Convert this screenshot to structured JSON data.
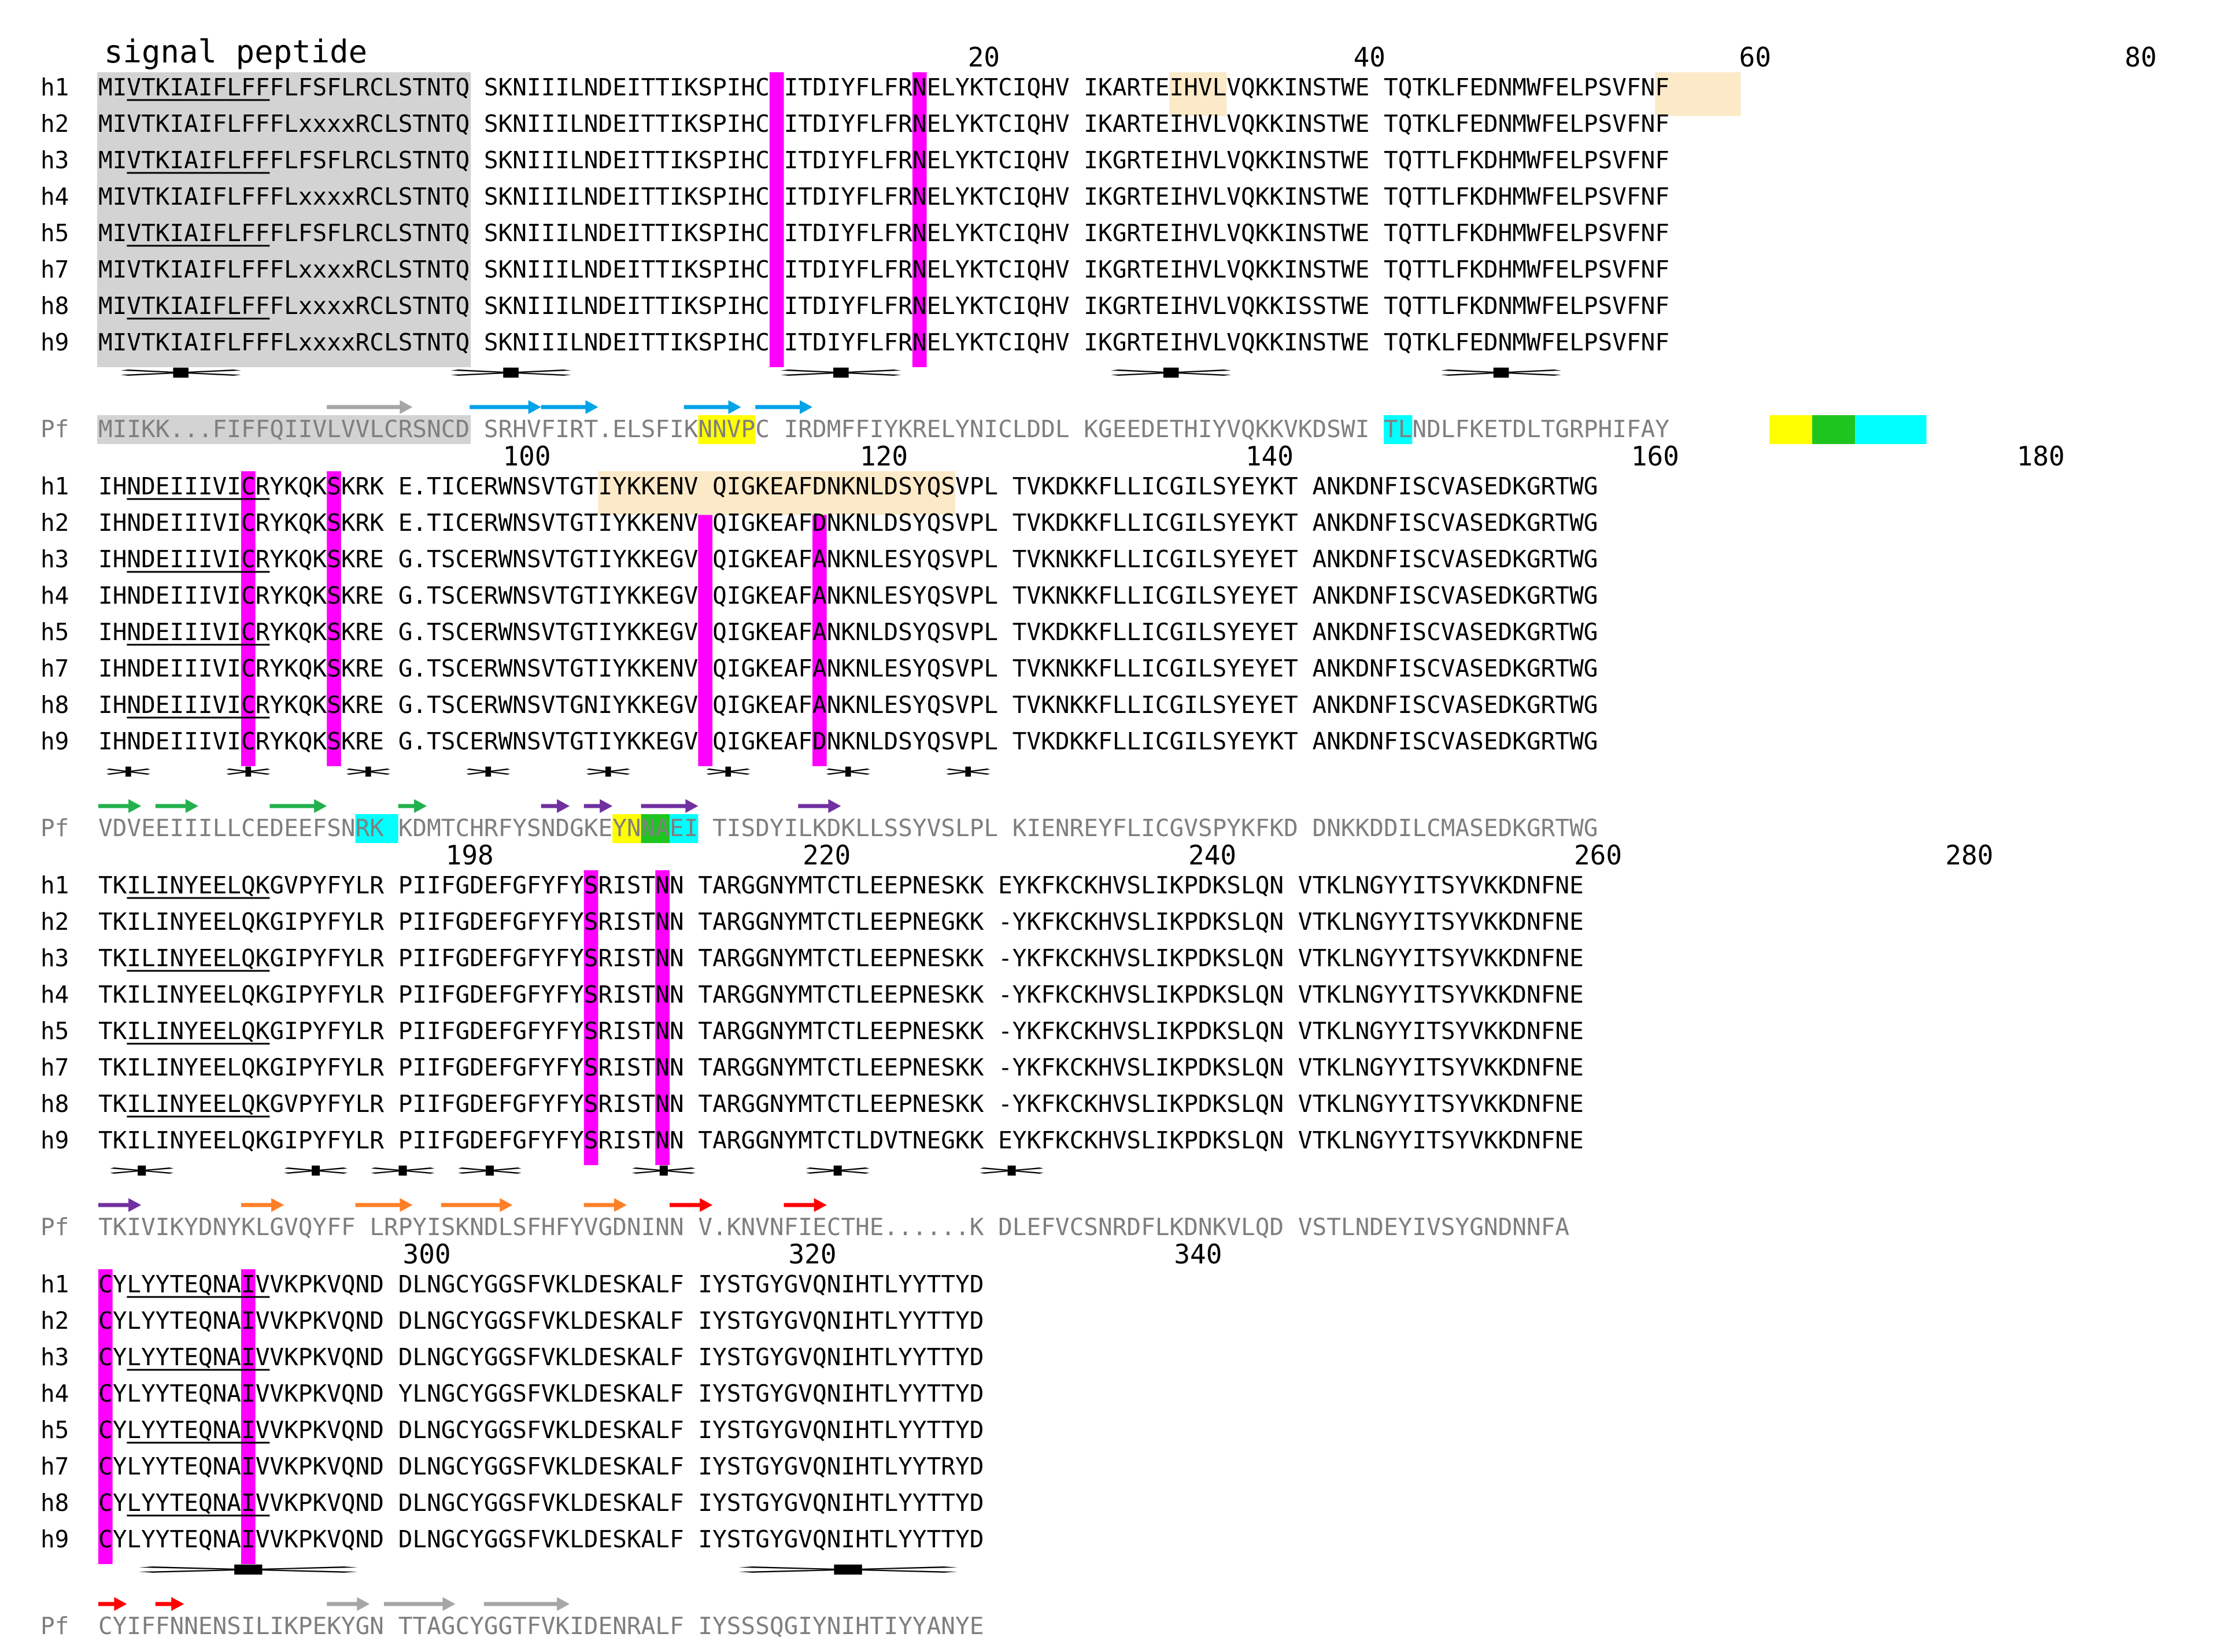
{
  "figure": {
    "title": "signal peptide",
    "colors": {
      "cysteine": "#ff00ff",
      "signal_bg": "#d3d3d3",
      "cream": "#fbe9c8",
      "yellow": "#ffff00",
      "cyan": "#00ffff",
      "green_hl": "#1fc51f",
      "red": "#ff0000",
      "orange": "#ff7f27",
      "green": "#22b14c",
      "blue": "#00a2e8",
      "purple": "#7030a0",
      "gray": "#a6a6a6",
      "pf_text": "#7f7f7f"
    },
    "blocks": [
      {
        "numbers": [
          {
            "col": 62,
            "text": "20"
          },
          {
            "col": 89,
            "text": "40"
          },
          {
            "col": 116,
            "text": "60"
          },
          {
            "col": 143,
            "text": "80"
          }
        ],
        "rows": [
          {
            "label": "h1",
            "text": "MIVTKIAIFLFFFLFSFLRCLSTNTQ SKNIIILNDEITTIKSPIHC ITDIYFLFRNELYKTCIQHV IKARTEIHVLVQKKINSTWE TQTKLFEDNMWFELPSVFNF"
          },
          {
            "label": "h2",
            "text": "MIVTKIAIFLFFFLxxxxRCLSTNTQ SKNIIILNDEITTIKSPIHC ITDIYFLFRNELYKTCIQHV IKARTEIHVLVQKKINSTWE TQTKLFEDNMWFELPSVFNF"
          },
          {
            "label": "h3",
            "text": "MIVTKIAIFLFFFLFSFLRCLSTNTQ SKNIIILNDEITTIKSPIHC ITDIYFLFRNELYKTCIQHV IKGRTEIHVLVQKKINSTWE TQTTLFKDHMWFELPSVFNF"
          },
          {
            "label": "h4",
            "text": "MIVTKIAIFLFFFLxxxxRCLSTNTQ SKNIIILNDEITTIKSPIHC ITDIYFLFRNELYKTCIQHV IKGRTEIHVLVQKKINSTWE TQTTLFKDHMWFELPSVFNF"
          },
          {
            "label": "h5",
            "text": "MIVTKIAIFLFFFLFSFLRCLSTNTQ SKNIIILNDEITTIKSPIHC ITDIYFLFRNELYKTCIQHV IKGRTEIHVLVQKKINSTWE TQTTLFKDHMWFELPSVFNF"
          },
          {
            "label": "h7",
            "text": "MIVTKIAIFLFFFLxxxxRCLSTNTQ SKNIIILNDEITTIKSPIHC ITDIYFLFRNELYKTCIQHV IKGRTEIHVLVQKKINSTWE TQTTLFKDHMWFELPSVFNF"
          },
          {
            "label": "h8",
            "text": "MIVTKIAIFLFFFLxxxxRCLSTNTQ SKNIIILNDEITTIKSPIHC ITDIYFLFRNELYKTCIQHV IKGRTEIHVLVQKKISSTWE TQTTLFKDNMWFELPSVFNF"
          },
          {
            "label": "h9",
            "text": "MIVTKIAIFLFFFLxxxxRCLSTNTQ SKNIIILNDEITTIKSPIHC ITDIYFLFRNELYKTCIQHV IKGRTEIHVLVQKKINSTWE TQTKLFEDNMWFELPSVFNF"
          }
        ],
        "stars": "                                                                            *          *         *  *  *",
        "pf": {
          "label": "Pf",
          "text": "MIIKK...FIFFQIIVLVVLCRSNCD SRHVFIRT.ELSFIKNNVPC IRDMFFIYKRELYNICLDDL KGEEDETHIYVQKKVKDSWI TLNDLFKETDLTGRPHIFAY"
        }
      },
      {
        "numbers": [
          {
            "col": 30,
            "text": "100"
          },
          {
            "col": 55,
            "text": "120"
          },
          {
            "col": 82,
            "text": "140"
          },
          {
            "col": 109,
            "text": "160"
          },
          {
            "col": 136,
            "text": "180"
          }
        ],
        "rows": [
          {
            "label": "h1",
            "text": "IHNDEIIIVICRYKQKSKRK E.TICERWNSVTGTIYKKENV QIGKEAFDNKNLDSYQSVPL TVKDKKFLLICGILSYEYKT ANKDNFISCVASEDKGRTWG"
          },
          {
            "label": "h2",
            "text": "IHNDEIIIVICRYKQKSKRK E.TICERWNSVTGTIYKKENV QIGKEAFDNKNLDSYQSVPL TVKDKKFLLICGILSYEYKT ANKDNFISCVASEDKGRTWG"
          },
          {
            "label": "h3",
            "text": "IHNDEIIIVICRYKQKSKRE G.TSCERWNSVTGTIYKKEGV QIGKEAFANKNLESYQSVPL TVKNKKFLLICGILSYEYET ANKDNFISCVASEDKGRTWG"
          },
          {
            "label": "h4",
            "text": "IHNDEIIIVICRYKQKSKRE G.TSCERWNSVTGTIYKKEGV QIGKEAFANKNLESYQSVPL TVKNKKFLLICGILSYEYET ANKDNFISCVASEDKGRTWG"
          },
          {
            "label": "h5",
            "text": "IHNDEIIIVICRYKQKSKRE G.TSCERWNSVTGTIYKKEGV QIGKEAFANKNLDSYQSVPL TVKDKKFLLICGILSYEYET ANKDNFISCVASEDKGRTWG"
          },
          {
            "label": "h7",
            "text": "IHNDEIIIVICRYKQKSKRE G.TSCERWNSVTGTIYKKENV QIGKEAFANKNLESYQSVPL TVKNKKFLLICGILSYEYET ANKDNFISCVASEDKGRTWG"
          },
          {
            "label": "h8",
            "text": "IHNDEIIIVICRYKQKSKRE G.TSCERWNSVTGNIYKKEGV QIGKEAFANKNLESYQSVPL TVKNKKFLLICGILSYEYET ANKDNFISCVASEDKGRTWG"
          },
          {
            "label": "h9",
            "text": "IHNDEIIIVICRYKQKSKRE G.TSCERWNSVTGTIYKKEGV QIGKEAFDNKNLDSYQSVPL TVKDKKFLLICGILSYEYKT ANKDNFISCVASEDKGRTWG"
          }
        ],
        "stars": "                   *  *  *        *      *      *      *      *",
        "pf": {
          "label": "Pf",
          "text": "VDVEEIIILLCEDEEFSNRK KDMTCHRFYSNDGKEYNNAEI TISDYILKDKLLSSYVSLPL KIENREYFLICGVSPYKFKD DNKKDDILCMASEDKGRTWG"
        }
      },
      {
        "numbers": [
          {
            "col": 26,
            "text": "198"
          },
          {
            "col": 51,
            "text": "220"
          },
          {
            "col": 78,
            "text": "240"
          },
          {
            "col": 105,
            "text": "260"
          },
          {
            "col": 131,
            "text": "280"
          }
        ],
        "rows": [
          {
            "label": "h1",
            "text": "TKILINYEELQKGVPYFYLR PIIFGDEFGFYFYSRISTNN TARGGNYMTCTLEEPNESKK EYKFKCKHVSLIKPDKSLQN VTKLNGYYITSYVKKDNFNE"
          },
          {
            "label": "h2",
            "text": "TKILINYEELQKGIPYFYLR PIIFGDEFGFYFYSRISTNN TARGGNYMTCTLEEPNEGKK -YKFKCKHVSLIKPDKSLQN VTKLNGYYITSYVKKDNFNE"
          },
          {
            "label": "h3",
            "text": "TKILINYEELQKGIPYFYLR PIIFGDEFGFYFYSRISTNN TARGGNYMTCTLEEPNESKK -YKFKCKHVSLIKPDKSLQN VTKLNGYYITSYVKKDNFNE"
          },
          {
            "label": "h4",
            "text": "TKILINYEELQKGIPYFYLR PIIFGDEFGFYFYSRISTNN TARGGNYMTCTLEEPNESKK -YKFKCKHVSLIKPDKSLQN VTKLNGYYITSYVKKDNFNE"
          },
          {
            "label": "h5",
            "text": "TKILINYEELQKGIPYFYLR PIIFGDEFGFYFYSRISTNN TARGGNYMTCTLEEPNESKK -YKFKCKHVSLIKPDKSLQN VTKLNGYYITSYVKKDNFNE"
          },
          {
            "label": "h7",
            "text": "TKILINYEELQKGIPYFYLR PIIFGDEFGFYFYSRISTNN TARGGNYMTCTLEEPNESKK -YKFKCKHVSLIKPDKSLQN VTKLNGYYITSYVKKDNFNE"
          },
          {
            "label": "h8",
            "text": "TKILINYEELQKGVPYFYLR PIIFGDEFGFYFYSRISTNN TARGGNYMTCTLEEPNESKK -YKFKCKHVSLIKPDKSLQN VTKLNGYYITSYVKKDNFNE"
          },
          {
            "label": "h9",
            "text": "TKILINYEELQKGIPYFYLR PIIFGDEFGFYFYSRISTNN TARGGNYMTCTLDVTNEGKK EYKFKCKHVSLIKPDKSLQN VTKLNGYYITSYVKKDNFNE"
          }
        ],
        "stars": "             *                                        ***  *  *   *",
        "pf": {
          "label": "Pf",
          "text": "TKIVIKYDNYKLGVQYFF LRPYISKNDLSFHFYVGDNINN V.KNVNFIECTHE......K DLEFVCSNRDFLKDNKVLQD VSTLNDEYIVSYGNDNNFA"
        }
      },
      {
        "numbers": [
          {
            "col": 23,
            "text": "300"
          },
          {
            "col": 50,
            "text": "320"
          },
          {
            "col": 77,
            "text": "340"
          }
        ],
        "rows": [
          {
            "label": "h1",
            "text": "CYLYYTEQNAIVVKPKVQND DLNGCYGGSFVKLDESKALF IYSTGYGVQNIHTLYYTTYD"
          },
          {
            "label": "h2",
            "text": "CYLYYTEQNAIVVKPKVQND DLNGCYGGSFVKLDESKALF IYSTGYGVQNIHTLYYTTYD"
          },
          {
            "label": "h3",
            "text": "CYLYYTEQNAIVVKPKVQND DLNGCYGGSFVKLDESKALF IYSTGYGVQNIHTLYYTTYD"
          },
          {
            "label": "h4",
            "text": "CYLYYTEQNAIVVKPKVQND YLNGCYGGSFVKLDESKALF IYSTGYGVQNIHTLYYTTYD"
          },
          {
            "label": "h5",
            "text": "CYLYYTEQNAIVVKPKVQND DLNGCYGGSFVKLDESKALF IYSTGYGVQNIHTLYYTTYD"
          },
          {
            "label": "h7",
            "text": "CYLYYTEQNAIVVKPKVQND DLNGCYGGSFVKLDESKALF IYSTGYGVQNIHTLYYTRYD"
          },
          {
            "label": "h8",
            "text": "CYLYYTEQNAIVVKPKVQND DLNGCYGGSFVKLDESKALF IYSTGYGVQNIHTLYYTTYD"
          },
          {
            "label": "h9",
            "text": "CYLYYTEQNAIVVKPKVQND DLNGCYGGSFVKLDESKALF IYSTGYGVQNIHTLYYTTYD"
          }
        ],
        "stars": "                     *                                        *",
        "pf": {
          "label": "Pf",
          "text": "CYIFFNNENSILIKPEKYGN TTAGCYGGTFVKIDENRALF IYSSSQGIYNIHTIYYANYE"
        }
      }
    ]
  }
}
